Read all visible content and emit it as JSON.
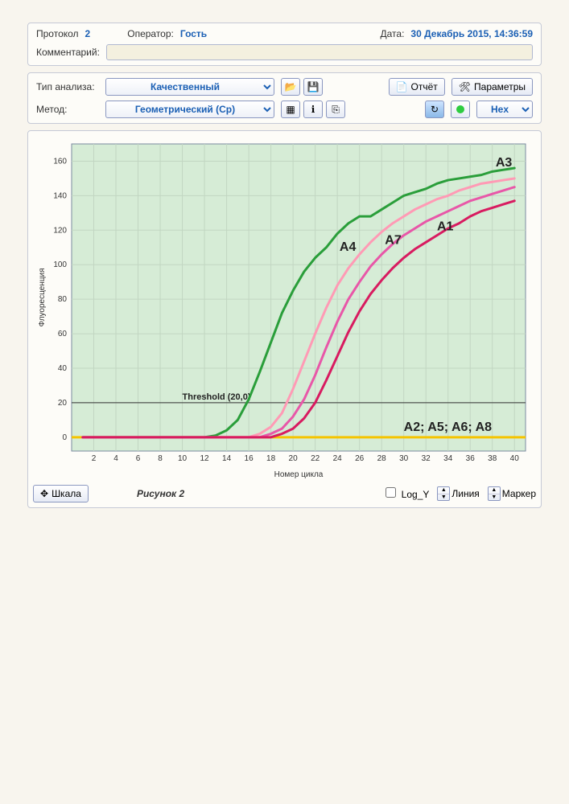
{
  "header": {
    "protocol_label": "Протокол",
    "protocol_value": "2",
    "operator_label": "Оператор:",
    "operator_value": "Гость",
    "date_label": "Дата:",
    "date_value": "30 Декабрь 2015, 14:36:59",
    "comment_label": "Комментарий:",
    "comment_value": ""
  },
  "toolbar": {
    "analysis_type_label": "Тип анализа:",
    "analysis_type_value": "Качественный",
    "method_label": "Метод:",
    "method_value": "Геометрический (Cp)",
    "report_label": "Отчёт",
    "params_label": "Параметры",
    "channel_label": "Hex"
  },
  "chart": {
    "type": "line",
    "background_color": "#d6ecd6",
    "grid_color": "#c2d6c2",
    "plot_border_color": "#7a8aa0",
    "xlabel": "Номер цикла",
    "ylabel": "Флуоресценция",
    "label_fontsize": 10,
    "xlim": [
      0,
      41
    ],
    "ylim": [
      -8,
      170
    ],
    "xticks": [
      2,
      4,
      6,
      8,
      10,
      12,
      14,
      16,
      18,
      20,
      22,
      24,
      26,
      28,
      30,
      32,
      34,
      36,
      38,
      40
    ],
    "yticks": [
      0,
      20,
      40,
      60,
      80,
      100,
      120,
      140,
      160
    ],
    "threshold": {
      "value": 20,
      "text": "Threshold (20,0)",
      "line_color": "#333333"
    },
    "baseline": {
      "color": "#f5c400",
      "width": 3,
      "label_right": "A2; A5; A6; A8"
    },
    "series": [
      {
        "name": "A3",
        "color": "#2a9e3a",
        "width": 3,
        "label_xy": [
          38.3,
          157
        ],
        "points": [
          [
            1,
            0
          ],
          [
            12,
            0
          ],
          [
            13,
            1
          ],
          [
            14,
            4
          ],
          [
            15,
            10
          ],
          [
            16,
            22
          ],
          [
            17,
            38
          ],
          [
            18,
            55
          ],
          [
            19,
            72
          ],
          [
            20,
            85
          ],
          [
            21,
            96
          ],
          [
            22,
            104
          ],
          [
            23,
            110
          ],
          [
            24,
            118
          ],
          [
            25,
            124
          ],
          [
            26,
            128
          ],
          [
            27,
            128
          ],
          [
            28,
            132
          ],
          [
            29,
            136
          ],
          [
            30,
            140
          ],
          [
            31,
            142
          ],
          [
            32,
            144
          ],
          [
            33,
            147
          ],
          [
            34,
            149
          ],
          [
            35,
            150
          ],
          [
            36,
            151
          ],
          [
            37,
            152
          ],
          [
            38,
            154
          ],
          [
            39,
            155
          ],
          [
            40,
            156
          ]
        ]
      },
      {
        "name": "A4",
        "color": "#ff9ab5",
        "width": 3,
        "label_xy": [
          24.2,
          108
        ],
        "points": [
          [
            1,
            0
          ],
          [
            16,
            0
          ],
          [
            17,
            2
          ],
          [
            18,
            6
          ],
          [
            19,
            14
          ],
          [
            20,
            28
          ],
          [
            21,
            44
          ],
          [
            22,
            60
          ],
          [
            23,
            75
          ],
          [
            24,
            88
          ],
          [
            25,
            98
          ],
          [
            26,
            106
          ],
          [
            27,
            113
          ],
          [
            28,
            119
          ],
          [
            29,
            124
          ],
          [
            30,
            128
          ],
          [
            31,
            132
          ],
          [
            32,
            135
          ],
          [
            33,
            138
          ],
          [
            34,
            140
          ],
          [
            35,
            143
          ],
          [
            36,
            145
          ],
          [
            37,
            147
          ],
          [
            38,
            148
          ],
          [
            39,
            149
          ],
          [
            40,
            150
          ]
        ]
      },
      {
        "name": "A7",
        "color": "#e857a8",
        "width": 3,
        "label_xy": [
          28.3,
          112
        ],
        "points": [
          [
            1,
            0
          ],
          [
            17,
            0
          ],
          [
            18,
            2
          ],
          [
            19,
            5
          ],
          [
            20,
            12
          ],
          [
            21,
            22
          ],
          [
            22,
            36
          ],
          [
            23,
            52
          ],
          [
            24,
            67
          ],
          [
            25,
            80
          ],
          [
            26,
            90
          ],
          [
            27,
            99
          ],
          [
            28,
            106
          ],
          [
            29,
            112
          ],
          [
            30,
            117
          ],
          [
            31,
            121
          ],
          [
            32,
            125
          ],
          [
            33,
            128
          ],
          [
            34,
            131
          ],
          [
            35,
            134
          ],
          [
            36,
            137
          ],
          [
            37,
            139
          ],
          [
            38,
            141
          ],
          [
            39,
            143
          ],
          [
            40,
            145
          ]
        ]
      },
      {
        "name": "A1",
        "color": "#d81b60",
        "width": 3,
        "label_xy": [
          33,
          120
        ],
        "points": [
          [
            1,
            0
          ],
          [
            18,
            0
          ],
          [
            19,
            2
          ],
          [
            20,
            5
          ],
          [
            21,
            11
          ],
          [
            22,
            20
          ],
          [
            23,
            33
          ],
          [
            24,
            47
          ],
          [
            25,
            61
          ],
          [
            26,
            73
          ],
          [
            27,
            83
          ],
          [
            28,
            91
          ],
          [
            29,
            98
          ],
          [
            30,
            104
          ],
          [
            31,
            109
          ],
          [
            32,
            113
          ],
          [
            33,
            117
          ],
          [
            34,
            121
          ],
          [
            35,
            124
          ],
          [
            36,
            128
          ],
          [
            37,
            131
          ],
          [
            38,
            133
          ],
          [
            39,
            135
          ],
          [
            40,
            137
          ]
        ]
      }
    ]
  },
  "footer": {
    "scale_label": "Шкала",
    "figure_caption": "Рисунок 2",
    "logy_label": "Log_Y",
    "line_label": "Линия",
    "marker_label": "Маркер"
  },
  "icons": {
    "open": "📂",
    "save": "💾",
    "report": "📄",
    "params": "🛠",
    "grid": "▦",
    "info": "ℹ",
    "copy": "⎘",
    "refresh": "↻",
    "move": "✥"
  }
}
